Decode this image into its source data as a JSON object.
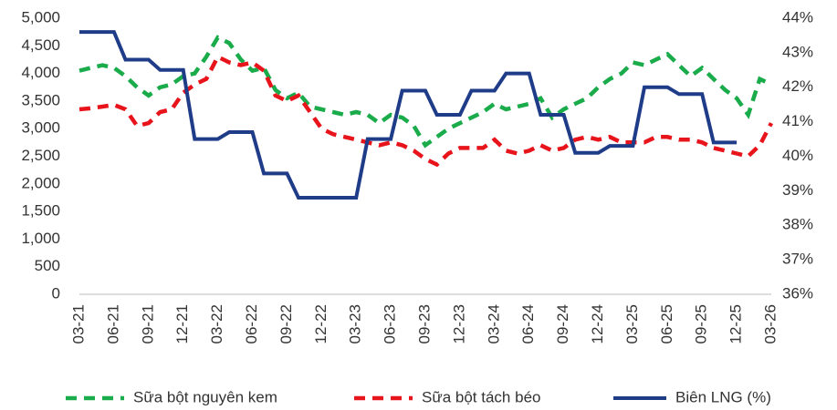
{
  "chart_data": {
    "type": "line",
    "categories": [
      "03-21",
      null,
      null,
      "06-21",
      null,
      null,
      "09-21",
      null,
      null,
      "12-21",
      null,
      null,
      "03-22",
      null,
      null,
      "06-22",
      null,
      null,
      "09-22",
      null,
      null,
      "12-22",
      null,
      null,
      "03-23",
      null,
      null,
      "06-23",
      null,
      null,
      "09-23",
      null,
      null,
      "12-23",
      null,
      null,
      "03-24",
      null,
      null,
      "06-24",
      null,
      null,
      "09-24",
      null,
      null,
      "12-24",
      null,
      null,
      "03-25",
      null,
      null,
      "06-25",
      null,
      null,
      "09-25",
      null,
      null,
      "12-25",
      null,
      null,
      "03-26"
    ],
    "series": [
      {
        "name": "Sữa bột nguyên kem",
        "color": "#1aab4b",
        "dashed": true,
        "values": [
          4050,
          4100,
          4150,
          4100,
          3950,
          3750,
          3600,
          3750,
          3800,
          3950,
          4000,
          4300,
          4650,
          4550,
          4250,
          4050,
          4100,
          3700,
          3550,
          3650,
          3400,
          3350,
          3300,
          3250,
          3300,
          3250,
          3100,
          3250,
          3200,
          3050,
          2700,
          2850,
          3000,
          3100,
          3200,
          3300,
          3450,
          3350,
          3400,
          3450,
          3550,
          3200,
          3350,
          3450,
          3550,
          3750,
          3900,
          4000,
          4200,
          4150,
          4250,
          4350,
          4150,
          3950,
          4100,
          3900,
          3700,
          3550,
          3250,
          3900,
          3800
        ]
      },
      {
        "name": "Sữa bột tách béo",
        "color": "#e8141b",
        "dashed": true,
        "values": [
          3350,
          3370,
          3400,
          3430,
          3350,
          3050,
          3100,
          3300,
          3350,
          3650,
          3800,
          3900,
          4300,
          4200,
          4150,
          4200,
          4050,
          3600,
          3500,
          3600,
          3300,
          3000,
          2900,
          2850,
          2800,
          2750,
          2700,
          2750,
          2700,
          2600,
          2450,
          2350,
          2550,
          2650,
          2650,
          2650,
          2800,
          2600,
          2550,
          2600,
          2700,
          2600,
          2650,
          2800,
          2850,
          2800,
          2850,
          2750,
          2750,
          2750,
          2850,
          2850,
          2800,
          2800,
          2750,
          2650,
          2600,
          2550,
          2500,
          2700,
          3100
        ]
      },
      {
        "name": "Biên LNG (%)",
        "color": "#1f3c88",
        "dashed": false,
        "axis": "y2",
        "values": [
          43.6,
          43.6,
          43.6,
          43.6,
          42.8,
          42.8,
          42.8,
          42.5,
          42.5,
          42.5,
          40.5,
          40.5,
          40.5,
          40.7,
          40.7,
          40.7,
          39.5,
          39.5,
          39.5,
          38.8,
          38.8,
          38.8,
          38.8,
          38.8,
          38.8,
          40.5,
          40.5,
          40.5,
          41.9,
          41.9,
          41.9,
          41.2,
          41.2,
          41.2,
          41.9,
          41.9,
          41.9,
          42.4,
          42.4,
          42.4,
          41.2,
          41.2,
          41.2,
          40.1,
          40.1,
          40.1,
          40.3,
          40.3,
          40.3,
          42.0,
          42.0,
          42.0,
          41.8,
          41.8,
          41.8,
          40.4,
          40.4,
          40.4,
          null,
          null,
          null
        ]
      }
    ],
    "ylim": [
      0,
      5000
    ],
    "yticks": [
      0,
      500,
      {
        "value": 1000,
        "label": "1,000"
      },
      {
        "value": 1500,
        "label": "1,500"
      },
      {
        "value": 2000,
        "label": "2,000"
      },
      {
        "value": 2500,
        "label": "2,500"
      },
      {
        "value": 3000,
        "label": "3,000"
      },
      {
        "value": 3500,
        "label": "3,500"
      },
      {
        "value": 4000,
        "label": "4,000"
      },
      {
        "value": 4500,
        "label": "4,500"
      },
      {
        "value": 5000,
        "label": "5,000"
      }
    ],
    "y2lim": [
      36,
      44
    ],
    "y2ticks": [
      {
        "value": 36,
        "label": "36%"
      },
      {
        "value": 37,
        "label": "37%"
      },
      {
        "value": 38,
        "label": "38%"
      },
      {
        "value": 39,
        "label": "39%"
      },
      {
        "value": 40,
        "label": "40%"
      },
      {
        "value": 41,
        "label": "41%"
      },
      {
        "value": 42,
        "label": "42%"
      },
      {
        "value": 43,
        "label": "43%"
      },
      {
        "value": 44,
        "label": "44%"
      }
    ],
    "grid": false,
    "legend": "bottom"
  }
}
